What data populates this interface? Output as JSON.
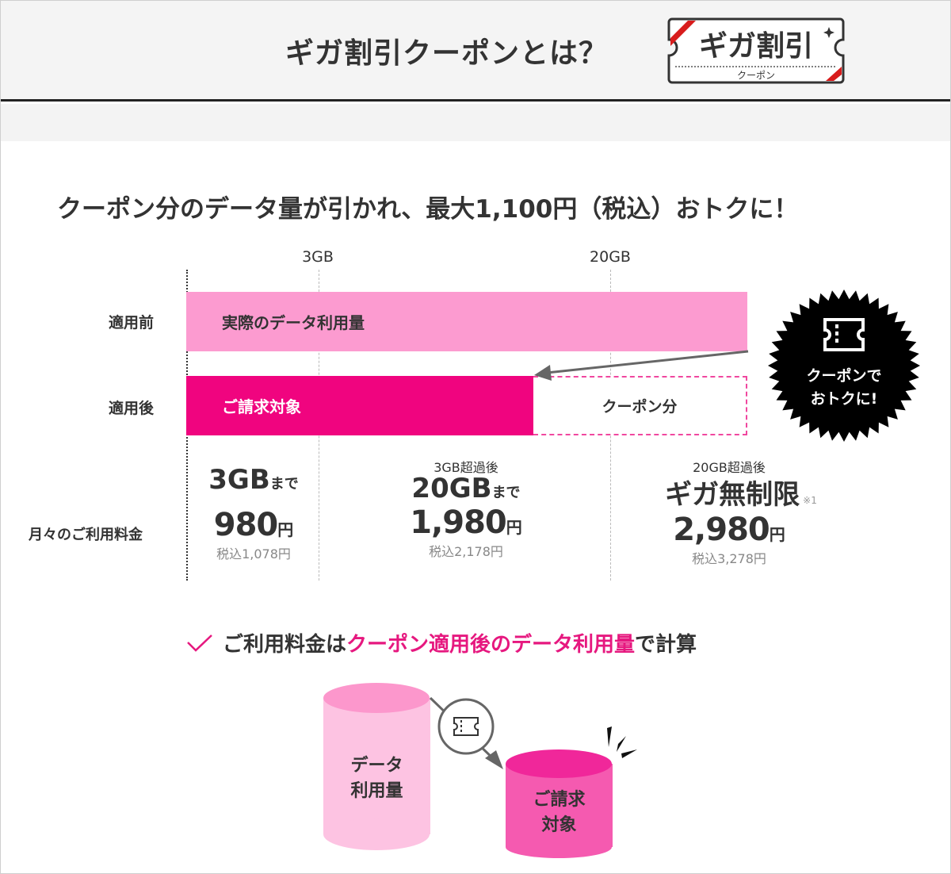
{
  "header": {
    "title": "ギガ割引クーポンとは？",
    "logo_main": "ギガ割引",
    "logo_sub": "クーポン"
  },
  "headline": "クーポン分のデータ量が引かれ、最大1,100円（税込）おトクに！",
  "diagram": {
    "ticks": [
      "3GB",
      "20GB"
    ],
    "row_before": "適用前",
    "row_after": "適用後",
    "bar_actual": "実際のデータ利用量",
    "bar_billed": "ご請求対象",
    "bar_coupon": "クーポン分",
    "badge": [
      "クーポンで",
      "おトクに!"
    ],
    "colors": {
      "actual": "#fc9bd0",
      "billed": "#f0047f",
      "coupon_border": "#f0479f"
    }
  },
  "pricing": {
    "label": "月々のご利用料金",
    "plans": [
      {
        "pre": "",
        "tier": "3GB",
        "tier_suffix": "まで",
        "price": "980",
        "unit": "円",
        "tax": "税込1,078円",
        "note": ""
      },
      {
        "pre": "3GB超過後",
        "tier": "20GB",
        "tier_suffix": "まで",
        "price": "1,980",
        "unit": "円",
        "tax": "税込2,178円",
        "note": ""
      },
      {
        "pre": "20GB超過後",
        "tier": "ギガ無制限",
        "tier_suffix": "",
        "price": "2,980",
        "unit": "円",
        "tax": "税込3,278円",
        "note": "※1"
      }
    ]
  },
  "note": {
    "check_icon": "check-icon",
    "text_a": "ご利用料金は",
    "text_highlight": "クーポン適用後のデータ利用量",
    "text_b": "で計算",
    "accent": "#e6187f"
  },
  "illustration": {
    "left": [
      "データ",
      "利用量"
    ],
    "right": [
      "ご請求",
      "対象"
    ]
  }
}
